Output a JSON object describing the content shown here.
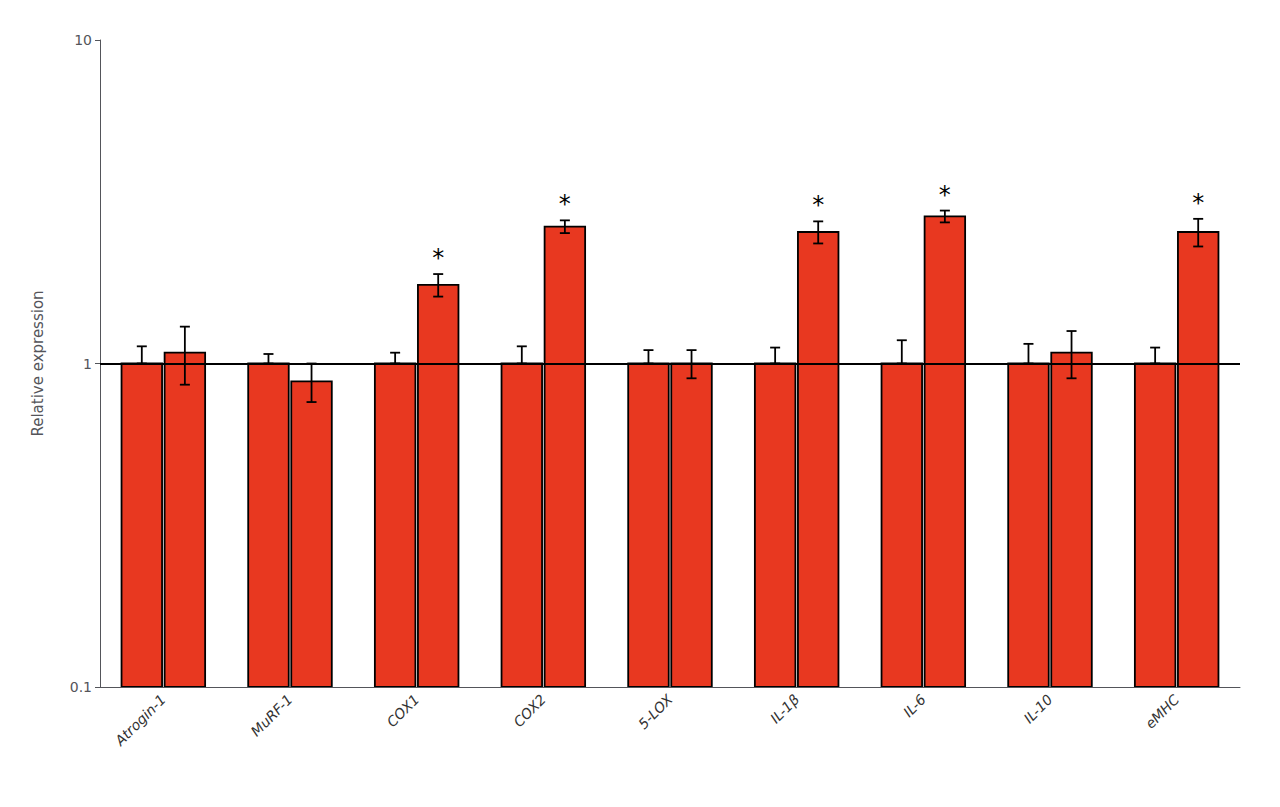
{
  "chart_data": {
    "type": "bar",
    "ylabel": "Relative expression",
    "categories": [
      "Atrogin-1",
      "MuRF-1",
      "COX1",
      "COX2",
      "5-LOX",
      "IL-1β",
      "IL-6",
      "IL-10",
      "eMHC"
    ],
    "series": [
      {
        "color": "#E83820",
        "values": [
          1.0,
          1.0,
          1.0,
          1.0,
          1.0,
          1.0,
          1.0,
          1.0,
          1.0
        ],
        "errors_up": [
          0.13,
          0.07,
          0.08,
          0.13,
          0.1,
          0.12,
          0.18,
          0.15,
          0.12
        ],
        "errors_dn": [
          0.0,
          0.0,
          0.0,
          0.0,
          0.0,
          0.0,
          0.0,
          0.0,
          0.0
        ]
      },
      {
        "color": "#E83820",
        "values": [
          1.08,
          0.88,
          1.75,
          2.65,
          1.0,
          2.55,
          2.85,
          1.08,
          2.55
        ],
        "errors_up": [
          0.22,
          0.12,
          0.14,
          0.12,
          0.1,
          0.2,
          0.12,
          0.18,
          0.25
        ],
        "errors_dn": [
          0.22,
          0.12,
          0.14,
          0.12,
          0.1,
          0.2,
          0.12,
          0.18,
          0.25
        ],
        "annotations": [
          {
            "category": "COX1",
            "text": "*"
          },
          {
            "category": "COX2",
            "text": "*"
          },
          {
            "category": "IL-1β",
            "text": "*"
          },
          {
            "category": "IL-6",
            "text": "*"
          },
          {
            "category": "eMHC",
            "text": "*"
          }
        ]
      }
    ],
    "ylim": [
      0.1,
      10
    ],
    "yticks": [
      0.1,
      1,
      10
    ],
    "log": "y",
    "grid": false,
    "reference_lines": [
      1
    ]
  }
}
